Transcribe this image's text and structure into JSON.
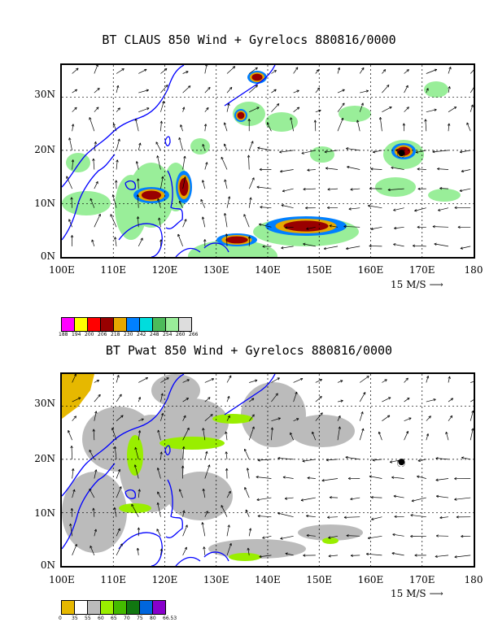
{
  "panels": [
    {
      "title": "BT CLAUS 850 Wind + Gyrelocs 880816/0000",
      "ylabels": [
        "30N",
        "20N",
        "10N",
        "0N"
      ],
      "xlabels": [
        "100E",
        "110E",
        "120E",
        "130E",
        "140E",
        "150E",
        "160E",
        "170E",
        "180"
      ],
      "ref_vector": "15 M/S",
      "legend": {
        "colors": [
          "#ff00ff",
          "#ffff00",
          "#ff0000",
          "#990000",
          "#e6a800",
          "#0080ff",
          "#00dddd",
          "#4cbb5a",
          "#99ee99",
          "#dddddd"
        ],
        "labels": [
          "188",
          "194",
          "200",
          "206",
          "218",
          "230",
          "242",
          "248",
          "254",
          "260",
          "266"
        ]
      }
    },
    {
      "title": "BT Pwat 850 Wind + Gyrelocs 880816/0000",
      "ylabels": [
        "30N",
        "20N",
        "10N",
        "0N"
      ],
      "xlabels": [
        "100E",
        "110E",
        "120E",
        "130E",
        "140E",
        "150E",
        "160E",
        "170E",
        "180"
      ],
      "ref_vector": "15 M/S",
      "legend": {
        "colors": [
          "#e6b800",
          "#ffffff",
          "#bbbbbb",
          "#99ee00",
          "#44bb00",
          "#117711",
          "#0066dd",
          "#8800cc"
        ],
        "labels": [
          "0",
          "35",
          "55",
          "60",
          "65",
          "70",
          "75",
          "80",
          "66.53"
        ]
      }
    }
  ],
  "map": {
    "lon_range": [
      100,
      180
    ],
    "lat_range": [
      0,
      36
    ],
    "grid_lons": [
      110,
      120,
      130,
      140,
      150,
      160,
      170
    ],
    "grid_lats": [
      10,
      20,
      30
    ],
    "coast_color": "#0000ff",
    "storm_marker": {
      "lon": 166,
      "lat": 19.5
    }
  }
}
